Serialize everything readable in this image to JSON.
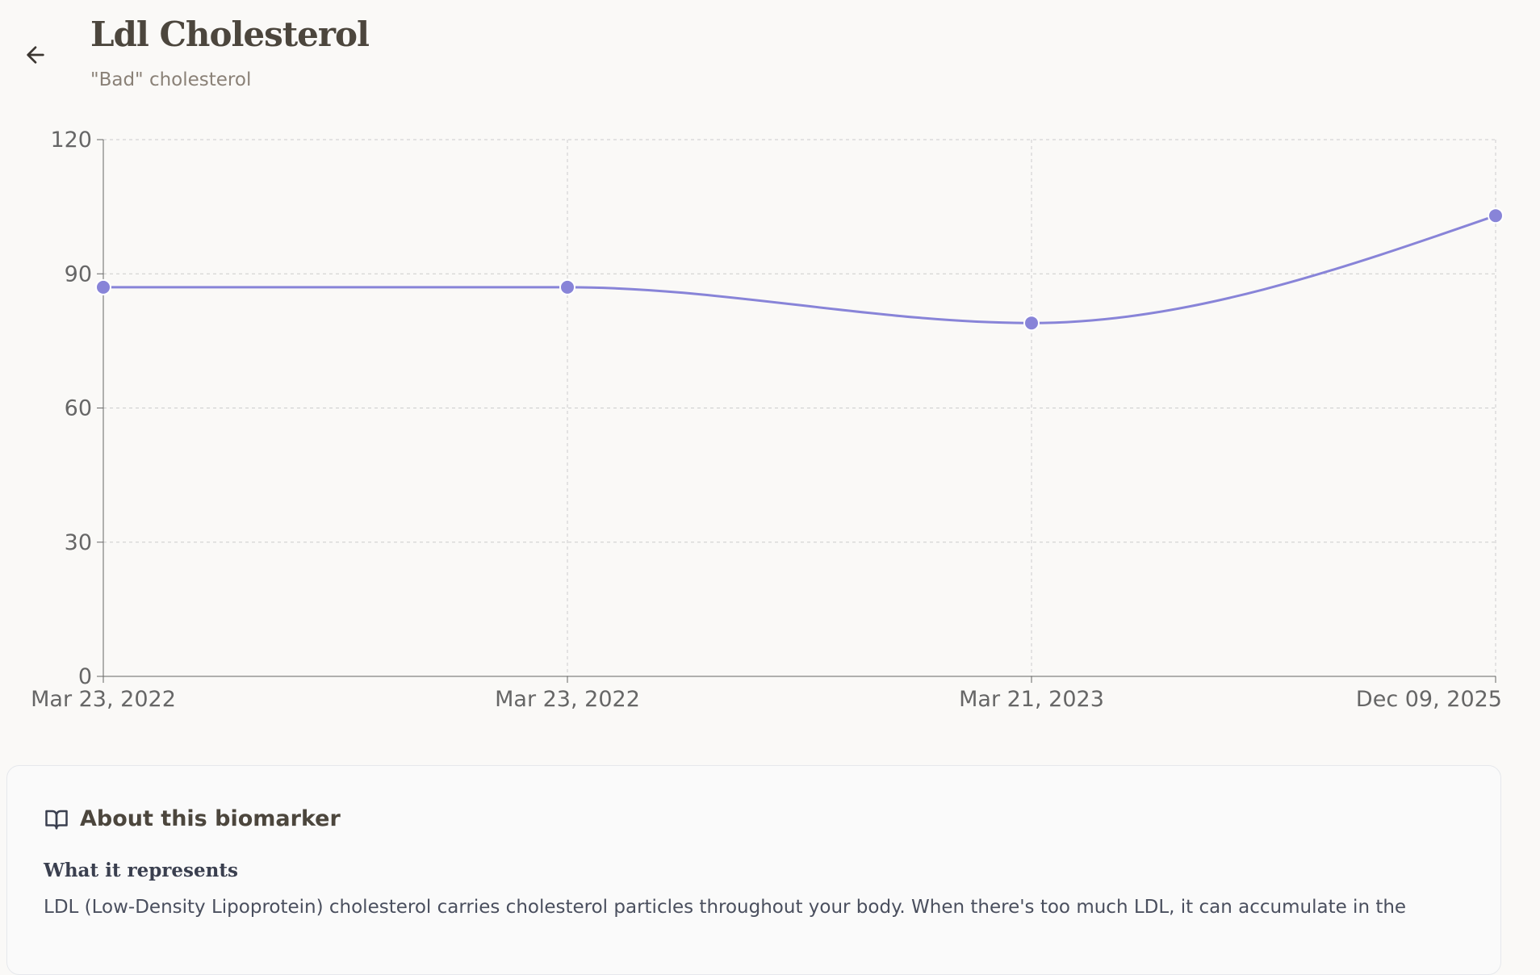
{
  "header": {
    "title": "Ldl Cholesterol",
    "subtitle": "\"Bad\" cholesterol",
    "back_icon": "arrow-left-icon"
  },
  "chart_data": {
    "type": "line",
    "categories": [
      "Mar 23, 2022",
      "Mar 23, 2022",
      "Mar 21, 2023",
      "Dec 09, 2025"
    ],
    "values": [
      87,
      87,
      79,
      103
    ],
    "ylim": [
      0,
      120
    ],
    "yticks": [
      0,
      30,
      60,
      90,
      120
    ],
    "grid": true,
    "curve": "monotone",
    "color": "#8884d8",
    "title": "",
    "xlabel": "",
    "ylabel": ""
  },
  "about": {
    "icon": "book-open-icon",
    "heading": "About this biomarker",
    "subheading": "What it represents",
    "body": "LDL (Low-Density Lipoprotein) cholesterol carries cholesterol particles throughout your body. When there's too much LDL, it can accumulate in the"
  }
}
